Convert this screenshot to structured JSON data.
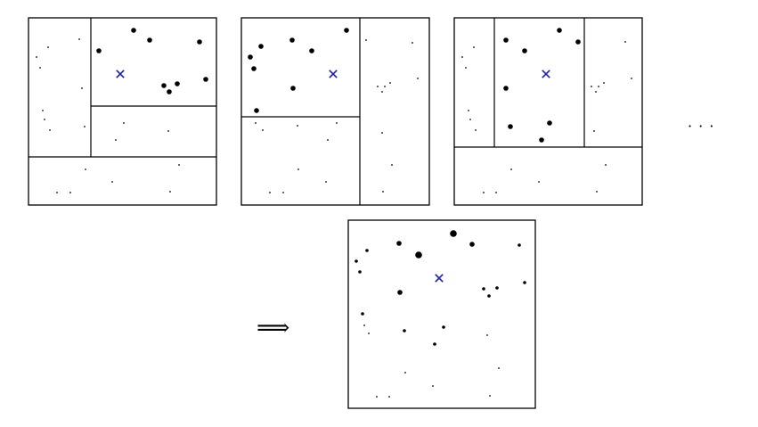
{
  "figure": {
    "description_tokens": {
      "arrow": "⟹",
      "ellipsis": "· · ·"
    },
    "marker_color": "#1a1acc",
    "ink_color": "#000000",
    "panels": [
      {
        "id": "panel-1",
        "frame": [
          32,
          20,
          243,
          230
        ],
        "splits": [
          [
            32,
            176,
            243,
            176
          ],
          [
            102,
            20,
            102,
            176
          ],
          [
            102,
            119,
            243,
            119
          ]
        ],
        "marker": [
          135,
          83
        ],
        "points": [
          [
            150,
            34,
            2.8
          ],
          [
            168,
            45,
            2.8
          ],
          [
            111,
            57,
            2.8
          ],
          [
            224,
            47,
            2.8
          ],
          [
            231,
            89,
            2.8
          ],
          [
            184,
            96,
            2.8
          ],
          [
            199,
            94,
            2.8
          ],
          [
            190,
            103,
            2.8
          ],
          [
            89,
            44,
            0.9
          ],
          [
            54,
            53,
            0.9
          ],
          [
            41,
            64,
            0.9
          ],
          [
            45,
            76,
            0.9
          ],
          [
            92,
            99,
            0.9
          ],
          [
            48,
            124,
            0.9
          ],
          [
            50,
            134,
            0.9
          ],
          [
            56,
            146,
            0.9
          ],
          [
            95,
            142,
            0.9
          ],
          [
            139,
            138,
            0.9
          ],
          [
            189,
            147,
            0.9
          ],
          [
            130,
            157,
            0.9
          ],
          [
            96,
            190,
            0.9
          ],
          [
            201,
            185,
            0.9
          ],
          [
            126,
            204,
            0.9
          ],
          [
            64,
            216,
            0.9
          ],
          [
            79,
            216,
            0.9
          ],
          [
            191,
            215,
            0.9
          ]
        ]
      },
      {
        "id": "panel-2",
        "frame": [
          271,
          20,
          482,
          230
        ],
        "splits": [
          [
            404,
            20,
            404,
            230
          ],
          [
            271,
            131,
            404,
            131
          ]
        ],
        "marker": [
          374,
          83
        ],
        "points": [
          [
            328,
            45,
            2.8
          ],
          [
            389,
            34,
            2.8
          ],
          [
            350,
            57,
            2.8
          ],
          [
            293,
            52,
            2.8
          ],
          [
            281,
            64,
            2.8
          ],
          [
            285,
            77,
            2.8
          ],
          [
            329,
            99,
            2.8
          ],
          [
            288,
            124,
            2.8
          ],
          [
            411,
            45,
            0.9
          ],
          [
            463,
            48,
            0.9
          ],
          [
            469,
            88,
            0.9
          ],
          [
            424,
            97,
            0.9
          ],
          [
            432,
            97,
            0.9
          ],
          [
            438,
            93,
            0.9
          ],
          [
            429,
            103,
            0.9
          ],
          [
            287,
            138,
            0.9
          ],
          [
            295,
            146,
            0.9
          ],
          [
            334,
            141,
            0.9
          ],
          [
            378,
            138,
            0.9
          ],
          [
            368,
            157,
            0.9
          ],
          [
            429,
            149,
            0.9
          ],
          [
            335,
            190,
            0.9
          ],
          [
            440,
            185,
            0.9
          ],
          [
            366,
            204,
            0.9
          ],
          [
            303,
            216,
            0.9
          ],
          [
            318,
            216,
            0.9
          ],
          [
            430,
            215,
            0.9
          ]
        ]
      },
      {
        "id": "panel-3",
        "frame": [
          510,
          20,
          721,
          230
        ],
        "splits": [
          [
            510,
            165,
            721,
            165
          ],
          [
            555,
            20,
            555,
            165
          ],
          [
            656,
            20,
            656,
            165
          ]
        ],
        "marker": [
          613,
          83
        ],
        "points": [
          [
            568,
            45,
            2.8
          ],
          [
            628,
            34,
            2.8
          ],
          [
            649,
            47,
            2.8
          ],
          [
            589,
            57,
            2.8
          ],
          [
            568,
            99,
            2.8
          ],
          [
            617,
            138,
            2.8
          ],
          [
            573,
            142,
            2.8
          ],
          [
            608,
            157,
            2.8
          ],
          [
            702,
            47,
            0.9
          ],
          [
            709,
            88,
            0.9
          ],
          [
            532,
            53,
            0.9
          ],
          [
            519,
            64,
            0.9
          ],
          [
            523,
            76,
            0.9
          ],
          [
            526,
            124,
            0.9
          ],
          [
            528,
            134,
            0.9
          ],
          [
            534,
            146,
            0.9
          ],
          [
            664,
            97,
            0.9
          ],
          [
            672,
            97,
            0.9
          ],
          [
            678,
            93,
            0.9
          ],
          [
            669,
            103,
            0.9
          ],
          [
            667,
            147,
            0.9
          ],
          [
            574,
            190,
            0.9
          ],
          [
            680,
            185,
            0.9
          ],
          [
            605,
            204,
            0.9
          ],
          [
            543,
            216,
            0.9
          ],
          [
            557,
            216,
            0.9
          ],
          [
            670,
            215,
            0.9
          ]
        ]
      },
      {
        "id": "panel-result",
        "frame": [
          391,
          247,
          601,
          458
        ],
        "splits": [],
        "marker": [
          493,
          312
        ],
        "points": [
          [
            509,
            262,
            3.8
          ],
          [
            470,
            286,
            3.8
          ],
          [
            448,
            273,
            2.8
          ],
          [
            530,
            274,
            2.8
          ],
          [
            449,
            328,
            2.8
          ],
          [
            412,
            281,
            1.8
          ],
          [
            400,
            293,
            1.8
          ],
          [
            404,
            305,
            1.8
          ],
          [
            583,
            275,
            1.8
          ],
          [
            589,
            317,
            1.8
          ],
          [
            543,
            324,
            1.8
          ],
          [
            558,
            323,
            1.8
          ],
          [
            549,
            332,
            1.8
          ],
          [
            407,
            352,
            1.8
          ],
          [
            454,
            371,
            1.8
          ],
          [
            498,
            367,
            1.8
          ],
          [
            488,
            386,
            1.8
          ],
          [
            409,
            365,
            0.9
          ],
          [
            414,
            374,
            0.9
          ],
          [
            547,
            376,
            0.9
          ],
          [
            455,
            418,
            0.9
          ],
          [
            560,
            413,
            0.9
          ],
          [
            486,
            433,
            0.9
          ],
          [
            423,
            445,
            0.9
          ],
          [
            437,
            445,
            0.9
          ],
          [
            550,
            444,
            0.9
          ]
        ]
      }
    ]
  }
}
